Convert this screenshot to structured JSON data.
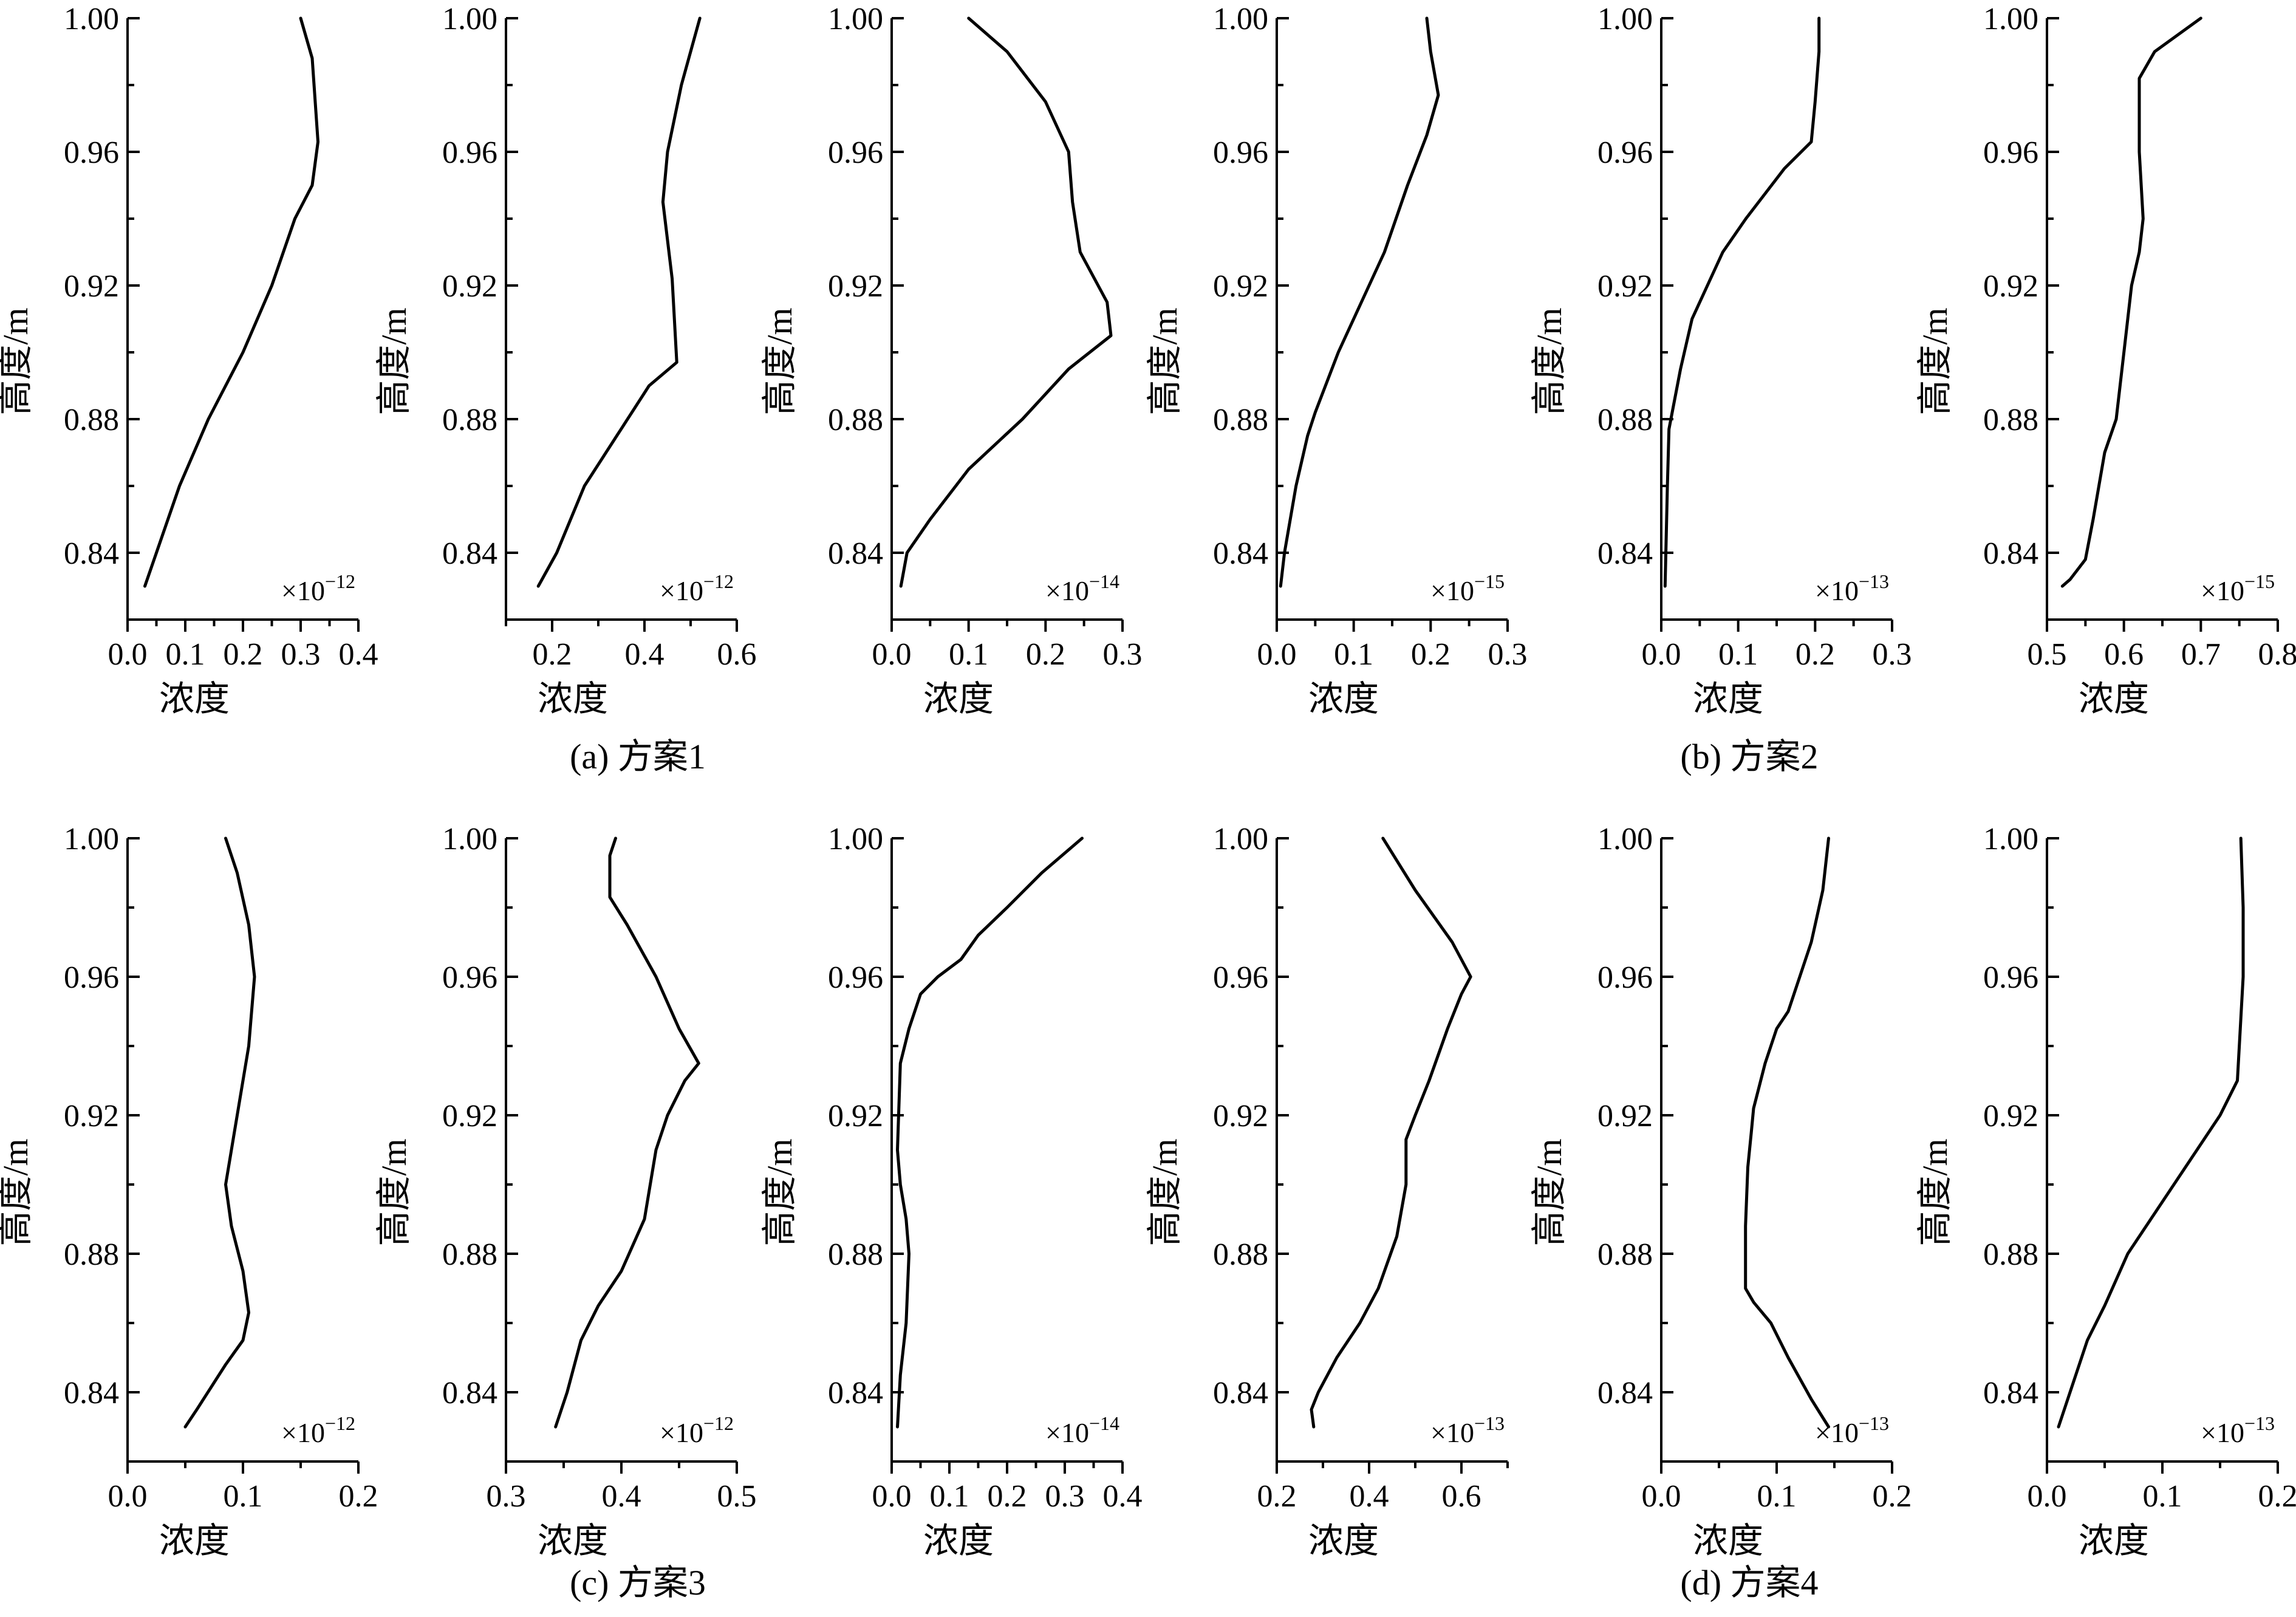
{
  "captions": [
    "(a) 方案1",
    "(b) 方案2",
    "(c) 方案3",
    "(d) 方案4"
  ],
  "chart_data": [
    {
      "type": "line",
      "xlabel": "浓度",
      "ylabel": "高度/m",
      "multiplier": "×10",
      "exponent": "−12",
      "xlim": [
        0,
        0.4
      ],
      "xticks": [
        "0.0",
        "0.1",
        "0.2",
        "0.3",
        "0.4"
      ],
      "ylim": [
        0.82,
        1.0
      ],
      "yticks": [
        "0.84",
        "0.88",
        "0.92",
        "0.96",
        "1.00"
      ],
      "x": [
        0.03,
        0.05,
        0.09,
        0.14,
        0.2,
        0.25,
        0.29,
        0.32,
        0.33,
        0.32,
        0.3
      ],
      "y": [
        0.83,
        0.84,
        0.86,
        0.88,
        0.9,
        0.92,
        0.94,
        0.95,
        0.963,
        0.988,
        1.0
      ]
    },
    {
      "type": "line",
      "xlabel": "浓度",
      "ylabel": "高度/m",
      "multiplier": "×10",
      "exponent": "−12",
      "xlim": [
        0.1,
        0.6
      ],
      "xticks": [
        "0.2",
        "0.4",
        "0.6"
      ],
      "ylim": [
        0.82,
        1.0
      ],
      "yticks": [
        "0.84",
        "0.88",
        "0.92",
        "0.96",
        "1.00"
      ],
      "x": [
        0.17,
        0.21,
        0.27,
        0.34,
        0.41,
        0.47,
        0.46,
        0.44,
        0.45,
        0.48,
        0.52
      ],
      "y": [
        0.83,
        0.84,
        0.86,
        0.875,
        0.89,
        0.897,
        0.922,
        0.945,
        0.96,
        0.98,
        1.0
      ]
    },
    {
      "type": "line",
      "xlabel": "浓度",
      "ylabel": "高度/m",
      "multiplier": "×10",
      "exponent": "−14",
      "xlim": [
        0,
        0.3
      ],
      "xticks": [
        "0.0",
        "0.1",
        "0.2",
        "0.3"
      ],
      "ylim": [
        0.82,
        1.0
      ],
      "yticks": [
        "0.84",
        "0.88",
        "0.92",
        "0.96",
        "1.00"
      ],
      "x": [
        0.012,
        0.02,
        0.05,
        0.1,
        0.17,
        0.23,
        0.285,
        0.28,
        0.245,
        0.235,
        0.23,
        0.2,
        0.15,
        0.1
      ],
      "y": [
        0.83,
        0.84,
        0.85,
        0.865,
        0.88,
        0.895,
        0.905,
        0.915,
        0.93,
        0.945,
        0.96,
        0.975,
        0.99,
        1.0
      ]
    },
    {
      "type": "line",
      "xlabel": "浓度",
      "ylabel": "高度/m",
      "multiplier": "×10",
      "exponent": "−15",
      "xlim": [
        0,
        0.3
      ],
      "xticks": [
        "0.0",
        "0.1",
        "0.2",
        "0.3"
      ],
      "ylim": [
        0.82,
        1.0
      ],
      "yticks": [
        "0.84",
        "0.88",
        "0.92",
        "0.96",
        "1.00"
      ],
      "x": [
        0.005,
        0.01,
        0.025,
        0.04,
        0.05,
        0.08,
        0.11,
        0.14,
        0.17,
        0.195,
        0.21,
        0.2,
        0.195
      ],
      "y": [
        0.83,
        0.84,
        0.86,
        0.875,
        0.882,
        0.9,
        0.915,
        0.93,
        0.95,
        0.965,
        0.977,
        0.99,
        1.0
      ]
    },
    {
      "type": "line",
      "xlabel": "浓度",
      "ylabel": "高度/m",
      "multiplier": "×10",
      "exponent": "−13",
      "xlim": [
        0,
        0.3
      ],
      "xticks": [
        "0.0",
        "0.1",
        "0.2",
        "0.3"
      ],
      "ylim": [
        0.82,
        1.0
      ],
      "yticks": [
        "0.84",
        "0.88",
        "0.92",
        "0.96",
        "1.00"
      ],
      "x": [
        0.005,
        0.008,
        0.01,
        0.025,
        0.04,
        0.06,
        0.08,
        0.11,
        0.16,
        0.195,
        0.2,
        0.205,
        0.205
      ],
      "y": [
        0.83,
        0.86,
        0.877,
        0.895,
        0.91,
        0.92,
        0.93,
        0.94,
        0.955,
        0.963,
        0.975,
        0.99,
        1.0
      ]
    },
    {
      "type": "line",
      "xlabel": "浓度",
      "ylabel": "高度/m",
      "multiplier": "×10",
      "exponent": "−15",
      "xlim": [
        0.5,
        0.8
      ],
      "xticks": [
        "0.5",
        "0.6",
        "0.7",
        "0.8"
      ],
      "ylim": [
        0.82,
        1.0
      ],
      "yticks": [
        "0.84",
        "0.88",
        "0.92",
        "0.96",
        "1.00"
      ],
      "x": [
        0.52,
        0.53,
        0.55,
        0.56,
        0.575,
        0.59,
        0.6,
        0.61,
        0.62,
        0.625,
        0.62,
        0.62,
        0.64,
        0.7
      ],
      "y": [
        0.83,
        0.832,
        0.838,
        0.85,
        0.87,
        0.88,
        0.9,
        0.92,
        0.93,
        0.94,
        0.96,
        0.982,
        0.99,
        1.0
      ]
    },
    {
      "type": "line",
      "xlabel": "浓度",
      "ylabel": "高度/m",
      "multiplier": "×10",
      "exponent": "−12",
      "xlim": [
        0,
        0.2
      ],
      "xticks": [
        "0.0",
        "0.1",
        "0.2"
      ],
      "ylim": [
        0.82,
        1.0
      ],
      "yticks": [
        "0.84",
        "0.88",
        "0.92",
        "0.96",
        "1.00"
      ],
      "x": [
        0.05,
        0.06,
        0.085,
        0.1,
        0.105,
        0.1,
        0.09,
        0.085,
        0.09,
        0.095,
        0.1,
        0.105,
        0.11,
        0.105,
        0.095,
        0.085
      ],
      "y": [
        0.83,
        0.835,
        0.848,
        0.855,
        0.863,
        0.875,
        0.888,
        0.9,
        0.91,
        0.92,
        0.93,
        0.94,
        0.96,
        0.975,
        0.99,
        1.0
      ]
    },
    {
      "type": "line",
      "xlabel": "浓度",
      "ylabel": "高度/m",
      "multiplier": "×10",
      "exponent": "−12",
      "xlim": [
        0.3,
        0.5
      ],
      "xticks": [
        "0.3",
        "0.4",
        "0.5"
      ],
      "ylim": [
        0.82,
        1.0
      ],
      "yticks": [
        "0.84",
        "0.88",
        "0.92",
        "0.96",
        "1.00"
      ],
      "x": [
        0.343,
        0.353,
        0.365,
        0.38,
        0.4,
        0.42,
        0.43,
        0.44,
        0.455,
        0.467,
        0.45,
        0.43,
        0.405,
        0.39,
        0.39,
        0.395
      ],
      "y": [
        0.83,
        0.84,
        0.855,
        0.865,
        0.875,
        0.89,
        0.91,
        0.92,
        0.93,
        0.935,
        0.945,
        0.96,
        0.975,
        0.983,
        0.995,
        1.0
      ]
    },
    {
      "type": "line",
      "xlabel": "浓度",
      "ylabel": "高度/m",
      "multiplier": "×10",
      "exponent": "−14",
      "xlim": [
        0,
        0.4
      ],
      "xticks": [
        "0.0",
        "0.1",
        "0.2",
        "0.3",
        "0.4"
      ],
      "ylim": [
        0.82,
        1.0
      ],
      "yticks": [
        "0.84",
        "0.88",
        "0.92",
        "0.96",
        "1.00"
      ],
      "x": [
        0.01,
        0.015,
        0.025,
        0.03,
        0.025,
        0.015,
        0.01,
        0.015,
        0.03,
        0.05,
        0.08,
        0.12,
        0.15,
        0.2,
        0.26,
        0.33
      ],
      "y": [
        0.83,
        0.845,
        0.86,
        0.88,
        0.89,
        0.9,
        0.91,
        0.935,
        0.945,
        0.955,
        0.96,
        0.965,
        0.972,
        0.98,
        0.99,
        1.0
      ]
    },
    {
      "type": "line",
      "xlabel": "浓度",
      "ylabel": "高度/m",
      "multiplier": "×10",
      "exponent": "−13",
      "xlim": [
        0.2,
        0.7
      ],
      "xticks": [
        "0.2",
        "0.4",
        "0.6"
      ],
      "ylim": [
        0.82,
        1.0
      ],
      "yticks": [
        "0.84",
        "0.88",
        "0.92",
        "0.96",
        "1.00"
      ],
      "x": [
        0.28,
        0.275,
        0.29,
        0.33,
        0.38,
        0.42,
        0.46,
        0.48,
        0.48,
        0.5,
        0.53,
        0.57,
        0.6,
        0.62,
        0.58,
        0.5,
        0.43
      ],
      "y": [
        0.83,
        0.835,
        0.84,
        0.85,
        0.86,
        0.87,
        0.885,
        0.9,
        0.913,
        0.92,
        0.93,
        0.945,
        0.955,
        0.96,
        0.97,
        0.985,
        1.0
      ]
    },
    {
      "type": "line",
      "xlabel": "浓度",
      "ylabel": "高度/m",
      "multiplier": "×10",
      "exponent": "−13",
      "xlim": [
        0,
        0.2
      ],
      "xticks": [
        "0.0",
        "0.1",
        "0.2"
      ],
      "ylim": [
        0.82,
        1.0
      ],
      "yticks": [
        "0.84",
        "0.88",
        "0.92",
        "0.96",
        "1.00"
      ],
      "x": [
        0.145,
        0.13,
        0.11,
        0.095,
        0.08,
        0.073,
        0.073,
        0.075,
        0.078,
        0.08,
        0.09,
        0.1,
        0.11,
        0.12,
        0.13,
        0.14,
        0.145
      ],
      "y": [
        0.83,
        0.838,
        0.85,
        0.86,
        0.866,
        0.87,
        0.888,
        0.905,
        0.915,
        0.922,
        0.935,
        0.945,
        0.95,
        0.96,
        0.97,
        0.985,
        1.0
      ]
    },
    {
      "type": "line",
      "xlabel": "浓度",
      "ylabel": "高度/m",
      "multiplier": "×10",
      "exponent": "−13",
      "xlim": [
        0,
        0.2
      ],
      "xticks": [
        "0.0",
        "0.1",
        "0.2"
      ],
      "ylim": [
        0.82,
        1.0
      ],
      "yticks": [
        "0.84",
        "0.88",
        "0.92",
        "0.96",
        "1.00"
      ],
      "x": [
        0.01,
        0.02,
        0.035,
        0.05,
        0.07,
        0.09,
        0.11,
        0.13,
        0.15,
        0.165,
        0.17,
        0.17,
        0.168
      ],
      "y": [
        0.83,
        0.84,
        0.855,
        0.865,
        0.88,
        0.89,
        0.9,
        0.91,
        0.92,
        0.93,
        0.96,
        0.98,
        1.0
      ]
    }
  ]
}
